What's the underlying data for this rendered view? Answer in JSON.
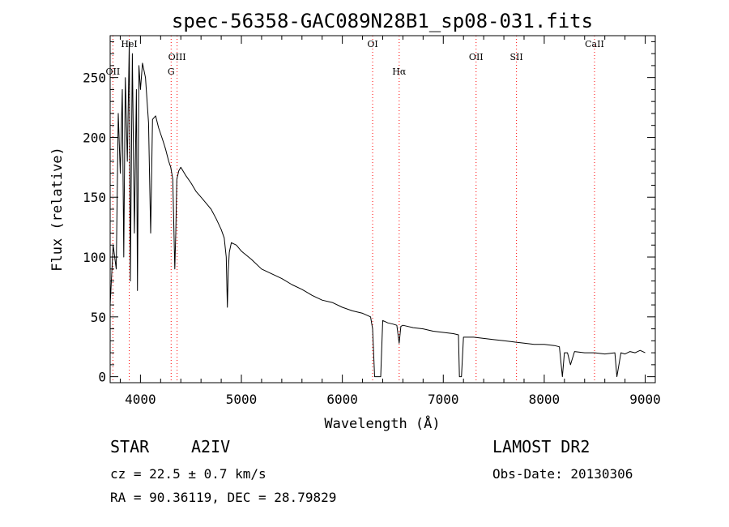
{
  "chart_data": {
    "type": "line",
    "title": "spec-56358-GAC089N28B1_sp08-031.fits",
    "xlabel": "Wavelength (Å)",
    "ylabel": "Flux (relative)",
    "xlim": [
      3700,
      9100
    ],
    "ylim": [
      -5,
      285
    ],
    "xticks": [
      4000,
      5000,
      6000,
      7000,
      8000,
      9000
    ],
    "yticks": [
      0,
      50,
      100,
      150,
      200,
      250
    ],
    "grid": false,
    "series": [
      {
        "x": [
          3700,
          3730,
          3760,
          3780,
          3800,
          3820,
          3835,
          3850,
          3870,
          3889,
          3900,
          3920,
          3940,
          3960,
          3970,
          3985,
          4000,
          4020,
          4050,
          4080,
          4101,
          4120,
          4150,
          4180,
          4200,
          4220,
          4250,
          4280,
          4300,
          4320,
          4340,
          4350,
          4360,
          4380,
          4400,
          4450,
          4500,
          4550,
          4600,
          4650,
          4700,
          4750,
          4800,
          4830,
          4850,
          4861,
          4870,
          4880,
          4900,
          4950,
          5000,
          5100,
          5200,
          5300,
          5400,
          5500,
          5600,
          5700,
          5800,
          5900,
          6000,
          6100,
          6200,
          6280,
          6300,
          6320,
          6340,
          6360,
          6380,
          6400,
          6450,
          6500,
          6540,
          6563,
          6580,
          6600,
          6700,
          6800,
          6900,
          7000,
          7100,
          7150,
          7160,
          7180,
          7200,
          7300,
          7400,
          7500,
          7600,
          7700,
          7800,
          7900,
          8000,
          8100,
          8150,
          8180,
          8200,
          8230,
          8260,
          8300,
          8400,
          8500,
          8600,
          8700,
          8720,
          8760,
          8800,
          8850,
          8900,
          8950,
          9000
        ],
        "y": [
          60,
          110,
          90,
          220,
          170,
          240,
          100,
          250,
          180,
          280,
          80,
          270,
          120,
          240,
          72,
          260,
          240,
          262,
          250,
          212,
          120,
          215,
          218,
          208,
          203,
          198,
          190,
          180,
          175,
          165,
          90,
          120,
          165,
          172,
          175,
          168,
          162,
          155,
          150,
          145,
          140,
          132,
          123,
          116,
          100,
          58,
          88,
          104,
          112,
          110,
          105,
          98,
          90,
          86,
          82,
          77,
          73,
          68,
          64,
          62,
          58,
          55,
          53,
          50,
          40,
          0,
          0,
          0,
          0,
          47,
          45,
          44,
          43,
          28,
          42,
          43,
          41,
          40,
          38,
          37,
          36,
          35,
          0,
          0,
          33,
          33,
          32,
          31,
          30,
          29,
          28,
          27,
          27,
          26,
          25,
          0,
          20,
          20,
          10,
          21,
          20,
          20,
          19,
          20,
          0,
          20,
          19,
          21,
          20,
          22,
          20
        ]
      }
    ],
    "annotations": [
      {
        "label": "OII",
        "x": 3727
      },
      {
        "label": "HeI",
        "x": 3889
      },
      {
        "label": "OIII",
        "x": 4363
      },
      {
        "label": "G",
        "x": 4304
      },
      {
        "label": "OI",
        "x": 6300
      },
      {
        "label": "Hα",
        "x": 6563
      },
      {
        "label": "OII",
        "x": 7325
      },
      {
        "label": "SII",
        "x": 7725
      },
      {
        "label": "CaII",
        "x": 8498
      }
    ]
  },
  "info": {
    "object_type": "STAR",
    "subclass": "A2IV",
    "survey": "LAMOST DR2",
    "cz": "cz = 22.5 ± 0.7 km/s",
    "obs_date": "Obs-Date: 20130306",
    "coords": "RA =  90.36119, DEC =  28.79829"
  },
  "colors": {
    "line": "#000000",
    "marker_line": "#ff0000",
    "background": "#ffffff"
  }
}
